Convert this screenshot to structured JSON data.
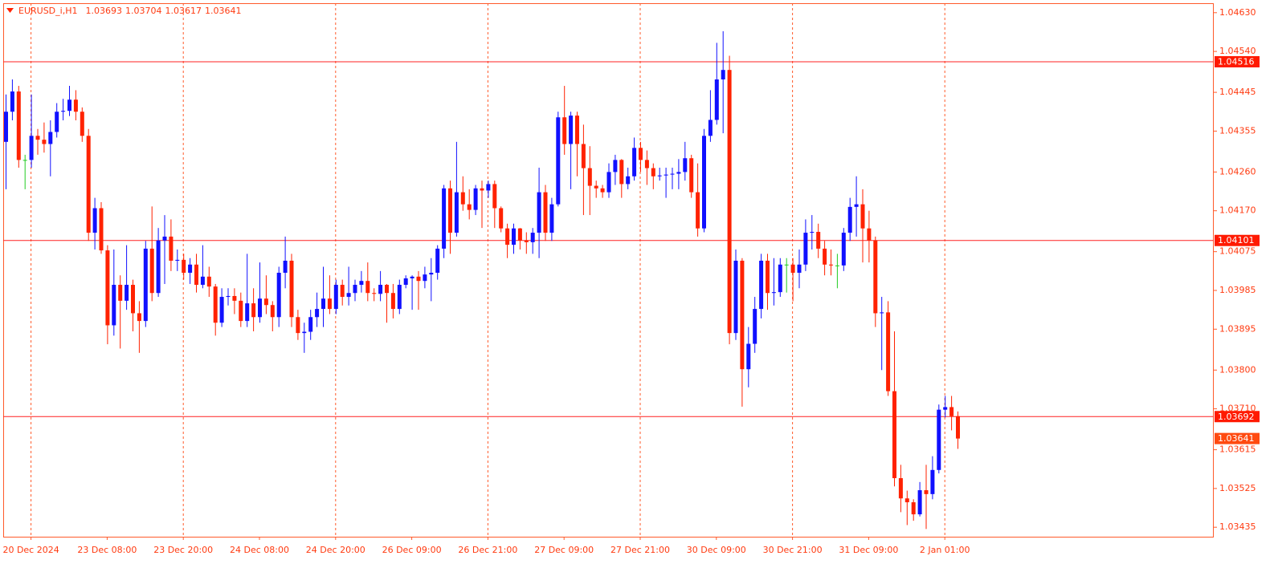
{
  "chart_data": {
    "type": "candlestick",
    "title": "EURUSD_i,H1",
    "up_color": "#1010ff",
    "down_color": "#ff2200",
    "doji_color": "#22cc22",
    "ylim": [
      1.03413,
      1.04652
    ],
    "yticks": [
      {
        "value": 1.0463,
        "label": "1.04630"
      },
      {
        "value": 1.0454,
        "label": "1.04540"
      },
      1.04445,
      1.04355,
      {
        "value": 1.0426,
        "label": "1.04260"
      },
      {
        "value": 1.0417,
        "label": "1.04170"
      },
      1.04075,
      1.03985,
      1.03895,
      {
        "value": 1.038,
        "label": "1.03800"
      },
      {
        "value": 1.0371,
        "label": "1.03710"
      },
      1.03615,
      1.03525,
      1.03435
    ],
    "hlines": [
      1.04516,
      1.04101,
      1.03692
    ],
    "categories": [
      null,
      null,
      null,
      null,
      "20 Dec 2024",
      null,
      null,
      null,
      null,
      null,
      null,
      null,
      null,
      null,
      null,
      null,
      "23 Dec 08:00",
      null,
      null,
      null,
      null,
      null,
      null,
      null,
      null,
      null,
      null,
      null,
      "23 Dec 20:00",
      null,
      null,
      null,
      null,
      null,
      null,
      null,
      null,
      null,
      null,
      null,
      "24 Dec 08:00",
      null,
      null,
      null,
      null,
      null,
      null,
      null,
      null,
      null,
      null,
      null,
      "24 Dec 20:00",
      null,
      null,
      null,
      null,
      null,
      null,
      null,
      null,
      null,
      null,
      null,
      "26 Dec 09:00",
      null,
      null,
      null,
      null,
      null,
      null,
      null,
      null,
      null,
      null,
      null,
      "26 Dec 21:00",
      null,
      null,
      null,
      null,
      null,
      null,
      null,
      null,
      null,
      null,
      null,
      "27 Dec 09:00",
      null,
      null,
      null,
      null,
      null,
      null,
      null,
      null,
      null,
      null,
      null,
      "27 Dec 21:00",
      null,
      null,
      null,
      null,
      null,
      null,
      null,
      null,
      null,
      null,
      null,
      "30 Dec 09:00",
      null,
      null,
      null,
      null,
      null,
      null,
      null,
      null,
      null,
      null,
      null,
      "30 Dec 21:00",
      null,
      null,
      null,
      null,
      null,
      null,
      null,
      null,
      null,
      null,
      null,
      "31 Dec 09:00",
      null,
      null,
      null,
      null,
      null,
      null,
      null,
      null,
      null,
      null,
      null,
      "2 Jan 01:00",
      null,
      null
    ],
    "open": [
      1.0433,
      1.044,
      1.04447,
      1.04288,
      1.04288,
      1.04344,
      1.04335,
      1.04325,
      1.04353,
      1.044,
      1.04402,
      1.04428,
      1.044,
      1.04344,
      1.04119,
      1.04176,
      1.04078,
      1.03904,
      1.03998,
      1.03961,
      1.03998,
      1.03932,
      1.03914,
      1.04082,
      1.03979,
      1.04101,
      1.0411,
      1.04054,
      1.04056,
      1.04026,
      1.04045,
      1.03998,
      1.04017,
      1.03994,
      1.0391,
      1.0397,
      1.03972,
      1.03961,
      1.03914,
      1.03955,
      1.03923,
      1.03966,
      1.03951,
      1.03923,
      1.04026,
      1.04054,
      1.03923,
      1.03886,
      1.03889,
      1.03923,
      1.03942,
      1.03966,
      1.03942,
      1.03998,
      1.0397,
      1.03979,
      1.03998,
      1.04007,
      1.03979,
      1.03977,
      1.03998,
      1.03979,
      1.03942,
      1.03998,
      1.04013,
      1.04017,
      1.04007,
      1.04022,
      1.04026,
      1.04082,
      1.04222,
      1.04119,
      1.04213,
      1.04185,
      1.04172,
      1.04222,
      1.04217,
      1.04232,
      1.04176,
      1.04129,
      1.04091,
      1.04129,
      1.04101,
      1.04097,
      1.04119,
      1.04213,
      1.04119,
      1.04185,
      1.04387,
      1.04325,
      1.04391,
      1.04325,
      1.04269,
      1.04228,
      1.04222,
      1.04213,
      1.0426,
      1.04288,
      1.04232,
      1.0425,
      1.04316,
      1.04288,
      1.04269,
      1.0425,
      1.04252,
      1.04254,
      1.04256,
      1.0426,
      1.04292,
      1.04213,
      1.04129,
      1.04344,
      1.04381,
      1.04475,
      1.04497,
      1.03886,
      1.04054,
      1.03802,
      1.03861,
      1.03942,
      1.04054,
      1.03979,
      1.03981,
      1.04045,
      1.04045,
      1.04026,
      1.04045,
      1.04119,
      1.04121,
      1.04082,
      1.04045,
      1.04043,
      1.04043,
      1.04119,
      1.04179,
      1.04185,
      1.04129,
      1.04101,
      1.03932,
      1.03934,
      1.03751,
      1.03549,
      1.03502,
      1.03493,
      1.03465,
      1.03521,
      1.03512,
      1.03568,
      1.03708,
      1.03714,
      1.03693
    ],
    "high": [
      1.0444,
      1.04475,
      1.0446,
      1.043,
      1.0444,
      1.0436,
      1.04375,
      1.0438,
      1.0442,
      1.0443,
      1.0446,
      1.0445,
      1.0441,
      1.0436,
      1.042,
      1.0419,
      1.0409,
      1.0408,
      1.0402,
      1.0409,
      1.0401,
      1.0396,
      1.041,
      1.0418,
      1.0413,
      1.0416,
      1.0415,
      1.0408,
      1.0407,
      1.0406,
      1.0407,
      1.0409,
      1.0404,
      1.04,
      1.0399,
      1.0399,
      1.0399,
      1.0398,
      1.0407,
      1.0399,
      1.0405,
      1.0402,
      1.0396,
      1.0404,
      1.0411,
      1.0407,
      1.0394,
      1.0391,
      1.0394,
      1.0398,
      1.0404,
      1.0402,
      1.0401,
      1.0401,
      1.0404,
      1.0401,
      1.0403,
      1.0405,
      1.0399,
      1.0403,
      1.04,
      1.04,
      1.0401,
      1.0402,
      1.0402,
      1.0403,
      1.0404,
      1.0406,
      1.0409,
      1.0423,
      1.0424,
      1.0433,
      1.0425,
      1.0422,
      1.0423,
      1.0424,
      1.0424,
      1.0424,
      1.0418,
      1.0414,
      1.0414,
      1.0413,
      1.0412,
      1.0413,
      1.0427,
      1.0423,
      1.042,
      1.044,
      1.0446,
      1.044,
      1.044,
      1.0437,
      1.0432,
      1.0424,
      1.0423,
      1.0428,
      1.043,
      1.0429,
      1.0427,
      1.0434,
      1.0433,
      1.0431,
      1.0428,
      1.0427,
      1.0427,
      1.0427,
      1.0429,
      1.0433,
      1.043,
      1.0428,
      1.0436,
      1.0445,
      1.0456,
      1.04587,
      1.0453,
      1.0408,
      1.0406,
      1.039,
      1.0397,
      1.0407,
      1.0407,
      1.0406,
      1.0406,
      1.0406,
      1.0406,
      1.0408,
      1.0415,
      1.0416,
      1.0414,
      1.041,
      1.0408,
      1.0407,
      1.0413,
      1.042,
      1.0425,
      1.0422,
      1.0417,
      1.0411,
      1.0397,
      1.0396,
      1.0389,
      1.0358,
      1.0352,
      1.035,
      1.0354,
      1.0358,
      1.036,
      1.0372,
      1.0374,
      1.0374,
      1.03704
    ],
    "low": [
      1.0422,
      1.0438,
      1.0427,
      1.0422,
      1.0427,
      1.043,
      1.04305,
      1.0425,
      1.0434,
      1.0438,
      1.0439,
      1.0438,
      1.0433,
      1.041,
      1.0408,
      1.0407,
      1.0386,
      1.0388,
      1.0385,
      1.0394,
      1.0389,
      1.0384,
      1.039,
      1.0396,
      1.0397,
      1.04,
      1.0403,
      1.0403,
      1.0401,
      1.04,
      1.0398,
      1.0399,
      1.0397,
      1.0388,
      1.039,
      1.0395,
      1.0393,
      1.039,
      1.039,
      1.0389,
      1.0391,
      1.0393,
      1.0389,
      1.039,
      1.0399,
      1.039,
      1.0387,
      1.0384,
      1.0387,
      1.039,
      1.039,
      1.0393,
      1.0393,
      1.0395,
      1.0395,
      1.0396,
      1.0398,
      1.0396,
      1.0396,
      1.0396,
      1.0391,
      1.0392,
      1.0393,
      1.0399,
      1.0394,
      1.0394,
      1.0399,
      1.0396,
      1.0401,
      1.0406,
      1.0407,
      1.0411,
      1.0417,
      1.0415,
      1.0416,
      1.0413,
      1.042,
      1.0413,
      1.0412,
      1.0406,
      1.0407,
      1.0408,
      1.0407,
      1.0407,
      1.0406,
      1.041,
      1.041,
      1.0418,
      1.043,
      1.0422,
      1.0425,
      1.0416,
      1.0416,
      1.042,
      1.042,
      1.042,
      1.0423,
      1.042,
      1.0422,
      1.0424,
      1.0426,
      1.0423,
      1.0422,
      1.0424,
      1.042,
      1.0422,
      1.0422,
      1.0424,
      1.042,
      1.0411,
      1.0412,
      1.0433,
      1.0437,
      1.0435,
      1.0386,
      1.0387,
      1.03715,
      1.0376,
      1.0384,
      1.0392,
      1.0394,
      1.0395,
      1.0397,
      1.0398,
      1.0396,
      1.0399,
      1.0403,
      1.0408,
      1.0406,
      1.0402,
      1.0402,
      1.0399,
      1.0403,
      1.041,
      1.0411,
      1.0405,
      1.0405,
      1.039,
      1.038,
      1.0374,
      1.0353,
      1.0347,
      1.0344,
      1.0345,
      1.0346,
      1.03431,
      1.035,
      1.0356,
      1.0369,
      1.0366,
      1.03617
    ],
    "close": [
      1.044,
      1.04447,
      1.04288,
      1.04288,
      1.04344,
      1.04335,
      1.04325,
      1.04353,
      1.044,
      1.04402,
      1.04428,
      1.044,
      1.04344,
      1.04119,
      1.04176,
      1.04078,
      1.03904,
      1.03998,
      1.03961,
      1.03998,
      1.03932,
      1.03914,
      1.04082,
      1.03979,
      1.04101,
      1.0411,
      1.04054,
      1.04056,
      1.04026,
      1.04045,
      1.03998,
      1.04017,
      1.03994,
      1.0391,
      1.0397,
      1.03972,
      1.03961,
      1.03914,
      1.03955,
      1.03923,
      1.03966,
      1.03951,
      1.03923,
      1.04026,
      1.04054,
      1.03923,
      1.03886,
      1.03889,
      1.03923,
      1.03942,
      1.03966,
      1.03942,
      1.03998,
      1.0397,
      1.03979,
      1.03998,
      1.04007,
      1.03979,
      1.03977,
      1.03998,
      1.03979,
      1.03942,
      1.03998,
      1.04013,
      1.04017,
      1.04007,
      1.04022,
      1.04026,
      1.04082,
      1.04222,
      1.04119,
      1.04213,
      1.04185,
      1.04172,
      1.04222,
      1.04217,
      1.04232,
      1.04176,
      1.04129,
      1.04091,
      1.04129,
      1.04101,
      1.04097,
      1.04119,
      1.04213,
      1.04119,
      1.04185,
      1.04387,
      1.04325,
      1.04391,
      1.04325,
      1.04269,
      1.04228,
      1.04222,
      1.04213,
      1.0426,
      1.04288,
      1.04232,
      1.0425,
      1.04316,
      1.04288,
      1.04269,
      1.0425,
      1.04252,
      1.04254,
      1.04256,
      1.0426,
      1.04292,
      1.04213,
      1.04129,
      1.04344,
      1.04381,
      1.04475,
      1.04497,
      1.03886,
      1.04054,
      1.03802,
      1.03861,
      1.03942,
      1.04054,
      1.03979,
      1.03981,
      1.04045,
      1.04045,
      1.04026,
      1.04045,
      1.04119,
      1.04121,
      1.04082,
      1.04045,
      1.04043,
      1.04043,
      1.04119,
      1.04179,
      1.04185,
      1.04129,
      1.04101,
      1.03932,
      1.03934,
      1.03751,
      1.03549,
      1.03502,
      1.03493,
      1.03465,
      1.03521,
      1.03512,
      1.03568,
      1.03708,
      1.03714,
      1.03693,
      1.03641
    ]
  }
}
